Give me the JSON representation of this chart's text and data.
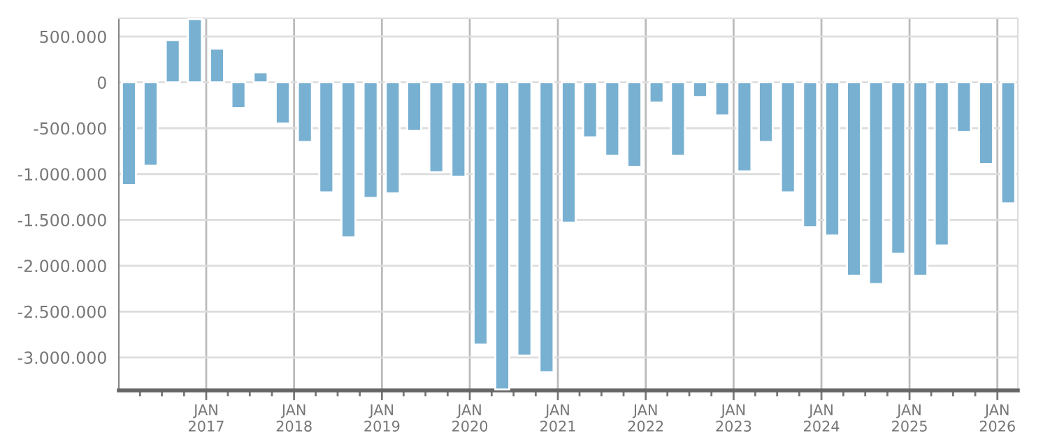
{
  "chart_data": {
    "type": "bar",
    "x": [
      "2016-02-15",
      "2016-05-15",
      "2016-08-15",
      "2016-11-15",
      "2017-02-15",
      "2017-05-15",
      "2017-08-15",
      "2017-11-15",
      "2018-02-15",
      "2018-05-15",
      "2018-08-15",
      "2018-11-15",
      "2019-02-15",
      "2019-05-15",
      "2019-08-15",
      "2019-11-15",
      "2020-02-15",
      "2020-05-15",
      "2020-08-15",
      "2020-11-15",
      "2021-02-15",
      "2021-05-15",
      "2021-08-15",
      "2021-11-15",
      "2022-02-15",
      "2022-05-15",
      "2022-08-15",
      "2022-11-15",
      "2023-02-15",
      "2023-05-15",
      "2023-08-15",
      "2023-11-15",
      "2024-02-15",
      "2024-05-15",
      "2024-08-15",
      "2024-11-15",
      "2025-02-15",
      "2025-05-15",
      "2025-08-15",
      "2025-11-15",
      "2026-02-15"
    ],
    "values": [
      -1120000,
      -910000,
      460000,
      690000,
      370000,
      -280000,
      110000,
      -450000,
      -650000,
      -1200000,
      -1690000,
      -1260000,
      -1210000,
      -530000,
      -980000,
      -1030000,
      -2860000,
      -3350000,
      -2980000,
      -3160000,
      -1530000,
      -600000,
      -800000,
      -920000,
      -220000,
      -800000,
      -160000,
      -360000,
      -970000,
      -650000,
      -1200000,
      -1580000,
      -1670000,
      -2110000,
      -2200000,
      -1870000,
      -2110000,
      -1780000,
      -540000,
      -890000,
      -1320000
    ],
    "color": "#78b0d2",
    "ylim": [
      -3360000,
      700000
    ],
    "yticks": [
      {
        "value": -3000000,
        "label": "-3.000.000"
      },
      {
        "value": -2500000,
        "label": "-2.500.000"
      },
      {
        "value": -2000000,
        "label": "-2.000.000"
      },
      {
        "value": -1500000,
        "label": "-1.500.000"
      },
      {
        "value": -1000000,
        "label": "-1.000.000"
      },
      {
        "value": -500000,
        "label": "-500.000"
      },
      0,
      {
        "value": 500000,
        "label": "500.000"
      }
    ],
    "xlim": [
      "2016-01-04",
      "2026-03-27"
    ],
    "xticks": [
      {
        "value": "2016-04-01",
        "label": null
      },
      {
        "value": "2016-07-01",
        "label": null
      },
      {
        "value": "2016-10-01",
        "label": null
      },
      {
        "value": "2017-01-01",
        "label": "JAN\n2017"
      },
      {
        "value": "2017-04-01",
        "label": null
      },
      {
        "value": "2017-07-01",
        "label": null
      },
      {
        "value": "2017-10-01",
        "label": null
      },
      {
        "value": "2018-01-01",
        "label": "JAN\n2018"
      },
      {
        "value": "2018-04-01",
        "label": null
      },
      {
        "value": "2018-07-01",
        "label": null
      },
      {
        "value": "2018-10-01",
        "label": null
      },
      {
        "value": "2019-01-01",
        "label": "JAN\n2019"
      },
      {
        "value": "2019-04-01",
        "label": null
      },
      {
        "value": "2019-07-01",
        "label": null
      },
      {
        "value": "2019-10-01",
        "label": null
      },
      {
        "value": "2020-01-01",
        "label": "JAN\n2020"
      },
      {
        "value": "2020-04-01",
        "label": null
      },
      {
        "value": "2020-07-01",
        "label": null
      },
      {
        "value": "2020-10-01",
        "label": null
      },
      {
        "value": "2021-01-01",
        "label": "JAN\n2021"
      },
      {
        "value": "2021-04-01",
        "label": null
      },
      {
        "value": "2021-07-01",
        "label": null
      },
      {
        "value": "2021-10-01",
        "label": null
      },
      {
        "value": "2022-01-01",
        "label": "JAN\n2022"
      },
      {
        "value": "2022-04-01",
        "label": null
      },
      {
        "value": "2022-07-01",
        "label": null
      },
      {
        "value": "2022-10-01",
        "label": null
      },
      {
        "value": "2023-01-01",
        "label": "JAN\n2023"
      },
      {
        "value": "2023-04-01",
        "label": null
      },
      {
        "value": "2023-07-01",
        "label": null
      },
      {
        "value": "2023-10-01",
        "label": null
      },
      {
        "value": "2024-01-01",
        "label": "JAN\n2024"
      },
      {
        "value": "2024-04-01",
        "label": null
      },
      {
        "value": "2024-07-01",
        "label": null
      },
      {
        "value": "2024-10-01",
        "label": null
      },
      {
        "value": "2025-01-01",
        "label": "JAN\n2025"
      },
      {
        "value": "2025-04-01",
        "label": null
      },
      {
        "value": "2025-07-01",
        "label": null
      },
      {
        "value": "2025-10-01",
        "label": null
      },
      {
        "value": "2026-01-01",
        "label": "JAN\n2026"
      }
    ],
    "grid": true,
    "legend": false
  }
}
